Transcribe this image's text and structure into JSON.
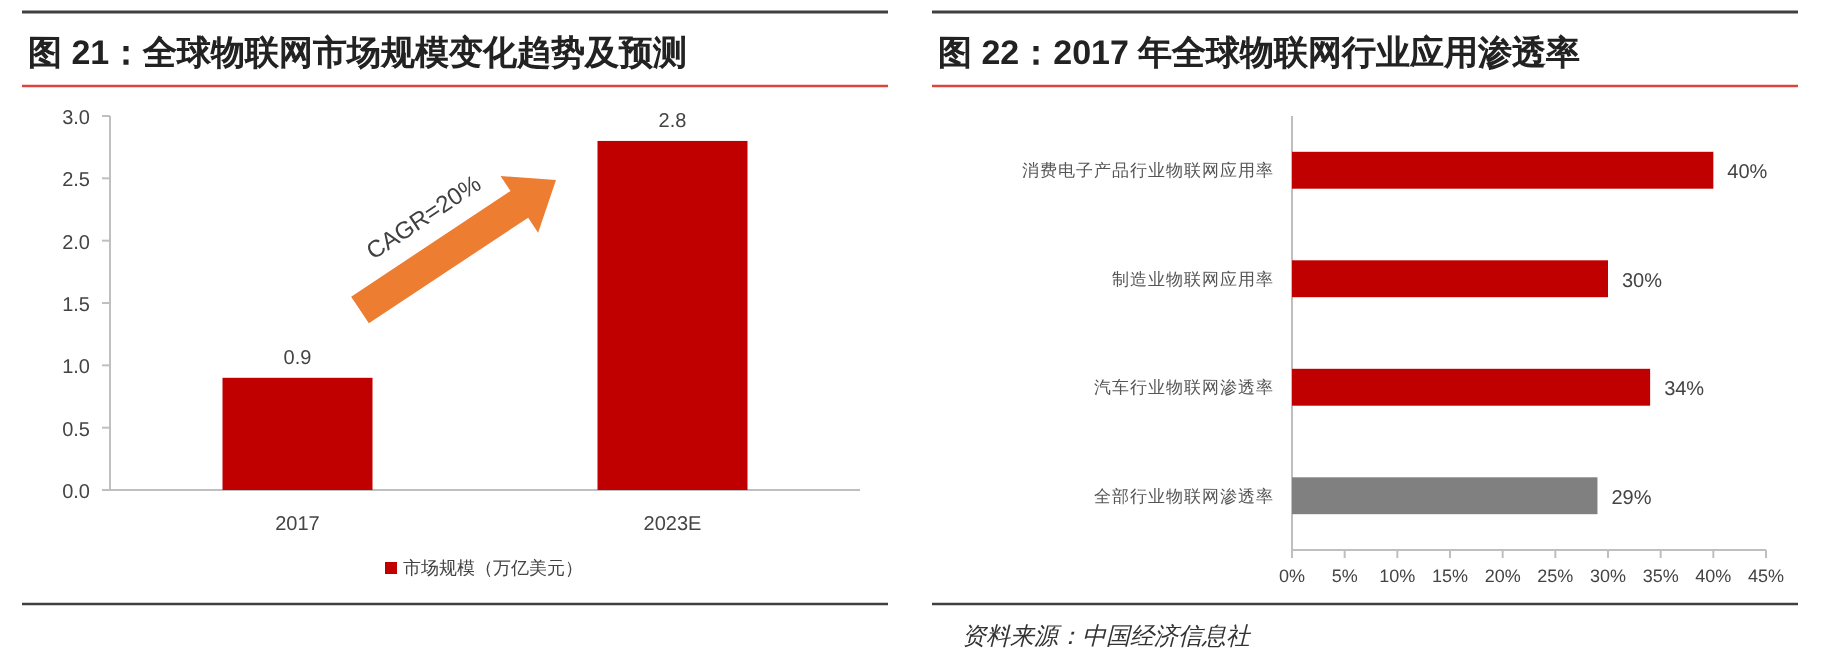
{
  "chart_data": [
    {
      "type": "bar",
      "title": "图 21：全球物联网市场规模变化趋势及预测",
      "categories": [
        "2017",
        "2023E"
      ],
      "series": [
        {
          "name": "市场规模（万亿美元）",
          "color": "#c00000",
          "values": [
            0.9,
            2.8
          ]
        }
      ],
      "ylim": [
        0,
        3
      ],
      "yticks": [
        {
          "value": 0,
          "label": "0.0"
        },
        {
          "value": 0.5,
          "label": "0.5"
        },
        {
          "value": 1,
          "label": "1.0"
        },
        {
          "value": 1.5,
          "label": "1.5"
        },
        {
          "value": 2,
          "label": "2.0"
        },
        {
          "value": 2.5,
          "label": "2.5"
        },
        {
          "value": 3,
          "label": "3.0"
        }
      ],
      "data_labels": true,
      "legend": "bottom",
      "annotations": [
        "CAGR=20%"
      ]
    },
    {
      "type": "bar",
      "orientation": "horizontal",
      "title": "图 22：2017 年全球物联网行业应用渗透率",
      "categories": [
        "消费电子产品行业物联网应用率",
        "制造业物联网应用率",
        "汽车行业物联网渗透率",
        "全部行业物联网渗透率"
      ],
      "values": [
        40,
        30,
        34,
        29
      ],
      "colors": [
        "#c00000",
        "#c00000",
        "#c00000",
        "#808080"
      ],
      "value_labels": [
        "40%",
        "30%",
        "34%",
        "29%"
      ],
      "xlim": [
        0,
        45
      ],
      "xticks": [
        {
          "value": 0,
          "label": "0%"
        },
        {
          "value": 5,
          "label": "5%"
        },
        {
          "value": 10,
          "label": "10%"
        },
        {
          "value": 15,
          "label": "15%"
        },
        {
          "value": 20,
          "label": "20%"
        },
        {
          "value": 25,
          "label": "25%"
        },
        {
          "value": 30,
          "label": "30%"
        },
        {
          "value": 35,
          "label": "35%"
        },
        {
          "value": 40,
          "label": "40%"
        },
        {
          "value": 45,
          "label": "45%"
        }
      ],
      "annotations": [
        "资料来源：中国经济信息社"
      ]
    }
  ]
}
